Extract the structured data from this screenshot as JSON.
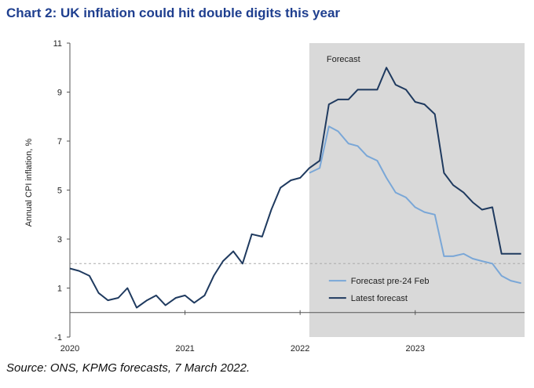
{
  "title": "Chart 2: UK inflation could hit double digits this year",
  "source": "Source: ONS, KPMG forecasts, 7 March 2022.",
  "chart_data": {
    "type": "line",
    "ylabel": "Annual CPI inflation, %",
    "ylim": [
      -1,
      11
    ],
    "yticks": [
      "-1",
      "1",
      "3",
      "5",
      "7",
      "9",
      "11"
    ],
    "ytick_values": [
      -1,
      1,
      3,
      5,
      7,
      9,
      11
    ],
    "xlim": [
      2020.0,
      2023.95
    ],
    "xticks": [
      "2020",
      "2021",
      "2022",
      "2023"
    ],
    "xtick_values": [
      2020,
      2021,
      2022,
      2023
    ],
    "reference_line": {
      "value": 2,
      "style": "dashed"
    },
    "forecast_region": {
      "start": 2022.08,
      "end": 2023.95,
      "label": "Forecast"
    },
    "legend_placement": "bottom-right",
    "series": [
      {
        "name": "Forecast pre-24 Feb",
        "color": "#7aa7d7",
        "x": [
          2022.08,
          2022.17,
          2022.25,
          2022.33,
          2022.42,
          2022.5,
          2022.58,
          2022.67,
          2022.75,
          2022.83,
          2022.92,
          2023.0,
          2023.08,
          2023.17,
          2023.25,
          2023.33,
          2023.42,
          2023.5,
          2023.58,
          2023.67,
          2023.75,
          2023.83,
          2023.92
        ],
        "values": [
          5.7,
          5.9,
          7.6,
          7.4,
          6.9,
          6.8,
          6.4,
          6.2,
          5.5,
          4.9,
          4.7,
          4.3,
          4.1,
          4.0,
          2.3,
          2.3,
          2.4,
          2.2,
          2.1,
          2.0,
          1.5,
          1.3,
          1.2
        ]
      },
      {
        "name": "Latest forecast",
        "color": "#1f3a5f",
        "x": [
          2020.0,
          2020.08,
          2020.17,
          2020.25,
          2020.33,
          2020.42,
          2020.5,
          2020.58,
          2020.67,
          2020.75,
          2020.83,
          2020.92,
          2021.0,
          2021.08,
          2021.17,
          2021.25,
          2021.33,
          2021.42,
          2021.5,
          2021.58,
          2021.67,
          2021.75,
          2021.83,
          2021.92,
          2022.0,
          2022.08,
          2022.17,
          2022.25,
          2022.33,
          2022.42,
          2022.5,
          2022.58,
          2022.67,
          2022.75,
          2022.83,
          2022.92,
          2023.0,
          2023.08,
          2023.17,
          2023.25,
          2023.33,
          2023.42,
          2023.5,
          2023.58,
          2023.67,
          2023.75,
          2023.83,
          2023.92
        ],
        "values": [
          1.8,
          1.7,
          1.5,
          0.8,
          0.5,
          0.6,
          1.0,
          0.2,
          0.5,
          0.7,
          0.3,
          0.6,
          0.7,
          0.4,
          0.7,
          1.5,
          2.1,
          2.5,
          2.0,
          3.2,
          3.1,
          4.2,
          5.1,
          5.4,
          5.5,
          5.9,
          6.2,
          8.5,
          8.7,
          8.7,
          9.1,
          9.1,
          9.1,
          10.0,
          9.3,
          9.1,
          8.6,
          8.5,
          8.1,
          5.7,
          5.2,
          4.9,
          4.5,
          4.2,
          4.3,
          2.4,
          2.4,
          2.4
        ]
      }
    ]
  }
}
